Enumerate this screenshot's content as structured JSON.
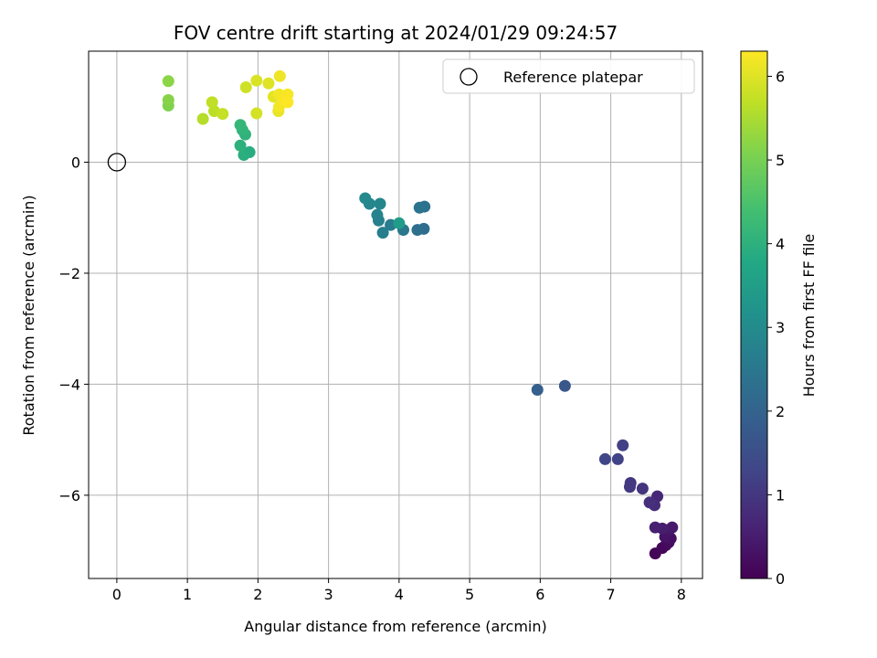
{
  "chart_data": {
    "type": "scatter",
    "title": "FOV centre drift starting at 2024/01/29 09:24:57",
    "xlabel": "Angular distance from reference (arcmin)",
    "ylabel": "Rotation from reference (arcmin)",
    "xlim": [
      -0.4,
      8.3
    ],
    "ylim": [
      -7.5,
      2.0
    ],
    "xticks": [
      "0",
      "1",
      "2",
      "3",
      "4",
      "5",
      "6",
      "7",
      "8"
    ],
    "yticks": [
      "−6",
      "−4",
      "−2",
      "0"
    ],
    "grid": true,
    "legend": {
      "position": "top-right",
      "entries": [
        "Reference platepar"
      ]
    },
    "reference_point": {
      "x": 0,
      "y": 0
    },
    "colorbar": {
      "label": "Hours from first FF file",
      "colormap": "viridis",
      "range": [
        0,
        6.3
      ],
      "ticks": [
        "0",
        "1",
        "2",
        "3",
        "4",
        "5",
        "6"
      ]
    },
    "series": [
      {
        "points": [
          {
            "x": 7.63,
            "y": -7.05,
            "c": 0.05
          },
          {
            "x": 7.73,
            "y": -6.95,
            "c": 0.1
          },
          {
            "x": 7.78,
            "y": -6.9,
            "c": 0.15
          },
          {
            "x": 7.82,
            "y": -6.85,
            "c": 0.2
          },
          {
            "x": 7.85,
            "y": -6.78,
            "c": 0.25
          },
          {
            "x": 7.77,
            "y": -6.75,
            "c": 0.3
          },
          {
            "x": 7.79,
            "y": -6.68,
            "c": 0.35
          },
          {
            "x": 7.83,
            "y": -6.62,
            "c": 0.4
          },
          {
            "x": 7.87,
            "y": -6.58,
            "c": 0.45
          },
          {
            "x": 7.73,
            "y": -6.6,
            "c": 0.5
          },
          {
            "x": 7.63,
            "y": -6.58,
            "c": 0.55
          },
          {
            "x": 7.66,
            "y": -6.02,
            "c": 0.7
          },
          {
            "x": 7.62,
            "y": -6.18,
            "c": 0.8
          },
          {
            "x": 7.55,
            "y": -6.13,
            "c": 0.85
          },
          {
            "x": 7.45,
            "y": -5.88,
            "c": 0.95
          },
          {
            "x": 7.28,
            "y": -5.78,
            "c": 1.0
          },
          {
            "x": 7.27,
            "y": -5.85,
            "c": 1.05
          },
          {
            "x": 7.17,
            "y": -5.1,
            "c": 1.2
          },
          {
            "x": 7.1,
            "y": -5.35,
            "c": 1.25
          },
          {
            "x": 6.92,
            "y": -5.35,
            "c": 1.3
          },
          {
            "x": 6.35,
            "y": -4.03,
            "c": 1.7
          },
          {
            "x": 5.96,
            "y": -4.1,
            "c": 1.9
          },
          {
            "x": 4.35,
            "y": -1.2,
            "c": 2.25
          },
          {
            "x": 4.26,
            "y": -1.22,
            "c": 2.3
          },
          {
            "x": 4.36,
            "y": -0.8,
            "c": 2.35
          },
          {
            "x": 4.29,
            "y": -0.82,
            "c": 2.4
          },
          {
            "x": 4.06,
            "y": -1.22,
            "c": 2.5
          },
          {
            "x": 3.88,
            "y": -1.13,
            "c": 2.6
          },
          {
            "x": 3.77,
            "y": -1.27,
            "c": 2.7
          },
          {
            "x": 3.71,
            "y": -1.05,
            "c": 2.75
          },
          {
            "x": 3.69,
            "y": -0.95,
            "c": 2.8
          },
          {
            "x": 3.73,
            "y": -0.75,
            "c": 2.85
          },
          {
            "x": 3.58,
            "y": -0.75,
            "c": 2.9
          },
          {
            "x": 3.52,
            "y": -0.65,
            "c": 2.95
          },
          {
            "x": 4.0,
            "y": -1.1,
            "c": 3.45
          },
          {
            "x": 1.88,
            "y": 0.18,
            "c": 3.9
          },
          {
            "x": 1.8,
            "y": 0.13,
            "c": 3.95
          },
          {
            "x": 1.75,
            "y": 0.3,
            "c": 4.0
          },
          {
            "x": 1.82,
            "y": 0.5,
            "c": 4.05
          },
          {
            "x": 1.78,
            "y": 0.58,
            "c": 4.1
          },
          {
            "x": 1.75,
            "y": 0.67,
            "c": 4.15
          },
          {
            "x": 0.73,
            "y": 1.02,
            "c": 5.1
          },
          {
            "x": 0.73,
            "y": 1.12,
            "c": 5.15
          },
          {
            "x": 0.73,
            "y": 1.46,
            "c": 5.2
          },
          {
            "x": 1.22,
            "y": 0.78,
            "c": 5.6
          },
          {
            "x": 1.38,
            "y": 0.92,
            "c": 5.65
          },
          {
            "x": 1.35,
            "y": 1.08,
            "c": 5.7
          },
          {
            "x": 1.5,
            "y": 0.87,
            "c": 5.75
          },
          {
            "x": 1.83,
            "y": 1.35,
            "c": 5.85
          },
          {
            "x": 1.98,
            "y": 0.88,
            "c": 5.9
          },
          {
            "x": 1.98,
            "y": 1.47,
            "c": 5.95
          },
          {
            "x": 2.15,
            "y": 1.42,
            "c": 6.0
          },
          {
            "x": 2.22,
            "y": 1.18,
            "c": 6.05
          },
          {
            "x": 2.29,
            "y": 0.92,
            "c": 6.1
          },
          {
            "x": 2.31,
            "y": 1.55,
            "c": 6.15
          },
          {
            "x": 2.3,
            "y": 1.22,
            "c": 6.2
          },
          {
            "x": 2.3,
            "y": 1.0,
            "c": 6.2
          },
          {
            "x": 2.37,
            "y": 1.12,
            "c": 6.25
          },
          {
            "x": 2.42,
            "y": 1.22,
            "c": 6.25
          },
          {
            "x": 2.42,
            "y": 1.08,
            "c": 6.3
          }
        ]
      }
    ]
  }
}
